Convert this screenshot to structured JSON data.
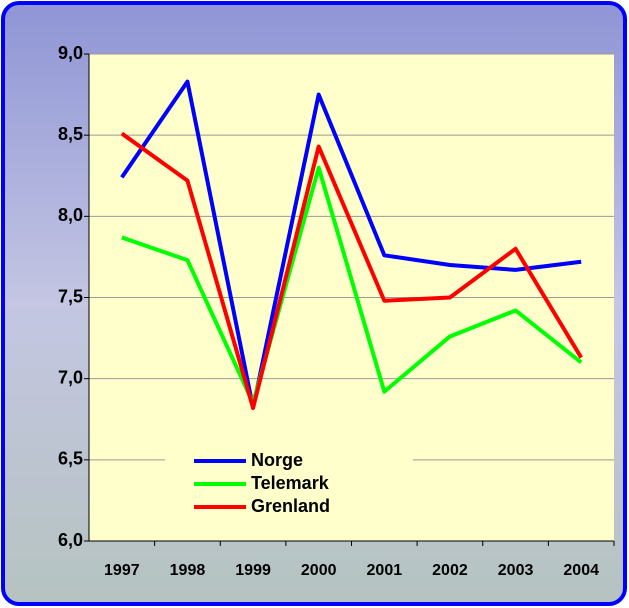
{
  "chart_data": {
    "type": "line",
    "categories": [
      "1997",
      "1998",
      "1999",
      "2000",
      "2001",
      "2002",
      "2003",
      "2004"
    ],
    "series": [
      {
        "name": "Norge",
        "color": "#0000ff",
        "values": [
          8.24,
          8.83,
          6.82,
          8.75,
          7.76,
          7.7,
          7.67,
          7.72
        ]
      },
      {
        "name": "Telemark",
        "color": "#00ff00",
        "values": [
          7.87,
          7.73,
          6.85,
          8.3,
          6.92,
          7.26,
          7.42,
          7.1
        ]
      },
      {
        "name": "Grenland",
        "color": "#ff0000",
        "values": [
          8.51,
          8.22,
          6.82,
          8.43,
          7.48,
          7.5,
          7.8,
          7.13
        ]
      }
    ],
    "ylim": [
      6.0,
      9.0
    ],
    "yticks": [
      {
        "value": 6.0,
        "label": "6,0"
      },
      {
        "value": 6.5,
        "label": "6,5"
      },
      {
        "value": 7.0,
        "label": "7,0"
      },
      {
        "value": 7.5,
        "label": "7,5"
      },
      {
        "value": 8.0,
        "label": "8,0"
      },
      {
        "value": 8.5,
        "label": "8,5"
      },
      {
        "value": 9.0,
        "label": "9,0"
      }
    ],
    "grid": true,
    "legend": "lower-left"
  }
}
